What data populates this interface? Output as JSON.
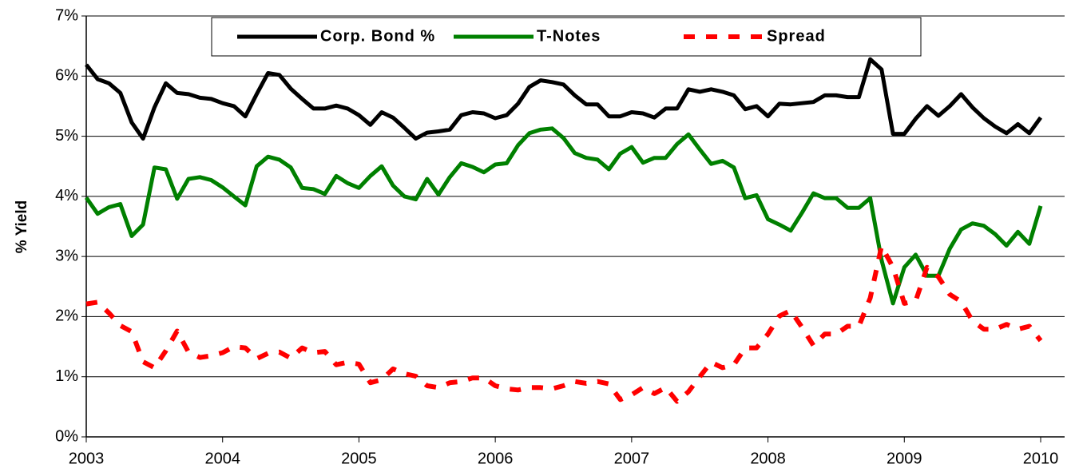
{
  "chart_data": {
    "type": "line",
    "ylabel": "% Yield",
    "categories": [
      "2003",
      null,
      null,
      null,
      null,
      null,
      null,
      null,
      null,
      null,
      null,
      null,
      "2004",
      null,
      null,
      null,
      null,
      null,
      null,
      null,
      null,
      null,
      null,
      null,
      "2005",
      null,
      null,
      null,
      null,
      null,
      null,
      null,
      null,
      null,
      null,
      null,
      "2006",
      null,
      null,
      null,
      null,
      null,
      null,
      null,
      null,
      null,
      null,
      null,
      "2007",
      null,
      null,
      null,
      null,
      null,
      null,
      null,
      null,
      null,
      null,
      null,
      "2008",
      null,
      null,
      null,
      null,
      null,
      null,
      null,
      null,
      null,
      null,
      null,
      "2009",
      null,
      null,
      null,
      null,
      null,
      null,
      null,
      null,
      null,
      null,
      null,
      "2010"
    ],
    "series": [
      {
        "name": "Corp. Bond %",
        "color": "#000000",
        "dash": false,
        "values": [
          6.19,
          5.95,
          5.88,
          5.72,
          5.23,
          4.96,
          5.48,
          5.88,
          5.72,
          5.7,
          5.64,
          5.62,
          5.55,
          5.5,
          5.33,
          5.7,
          6.05,
          6.02,
          5.79,
          5.62,
          5.46,
          5.46,
          5.51,
          5.46,
          5.35,
          5.19,
          5.4,
          5.31,
          5.14,
          4.96,
          5.06,
          5.08,
          5.11,
          5.35,
          5.4,
          5.38,
          5.3,
          5.35,
          5.54,
          5.82,
          5.93,
          5.9,
          5.86,
          5.68,
          5.53,
          5.53,
          5.33,
          5.33,
          5.4,
          5.38,
          5.31,
          5.46,
          5.46,
          5.78,
          5.74,
          5.78,
          5.74,
          5.68,
          5.45,
          5.5,
          5.33,
          5.54,
          5.53,
          5.55,
          5.57,
          5.68,
          5.68,
          5.65,
          5.65,
          6.28,
          6.11,
          5.04,
          5.04,
          5.29,
          5.5,
          5.34,
          5.5,
          5.7,
          5.48,
          5.3,
          5.16,
          5.05,
          5.2,
          5.05,
          5.31
        ]
      },
      {
        "name": "T-Notes",
        "color": "#008000",
        "dash": false,
        "values": [
          3.98,
          3.71,
          3.82,
          3.87,
          3.34,
          3.53,
          4.48,
          4.45,
          3.96,
          4.29,
          4.32,
          4.27,
          4.15,
          4.0,
          3.85,
          4.5,
          4.66,
          4.61,
          4.48,
          4.14,
          4.12,
          4.04,
          4.34,
          4.22,
          4.14,
          4.34,
          4.5,
          4.18,
          4.0,
          3.95,
          4.29,
          4.03,
          4.32,
          4.55,
          4.49,
          4.4,
          4.53,
          4.55,
          4.85,
          5.05,
          5.11,
          5.13,
          4.97,
          4.72,
          4.64,
          4.61,
          4.45,
          4.71,
          4.82,
          4.56,
          4.64,
          4.64,
          4.87,
          5.03,
          4.78,
          4.54,
          4.59,
          4.48,
          3.97,
          4.02,
          3.62,
          3.53,
          3.43,
          3.73,
          4.05,
          3.97,
          3.97,
          3.81,
          3.81,
          3.97,
          2.94,
          2.22,
          2.82,
          3.03,
          2.68,
          2.68,
          3.13,
          3.45,
          3.55,
          3.51,
          3.37,
          3.18,
          3.41,
          3.21,
          3.84
        ]
      },
      {
        "name": "Spread",
        "color": "#ff0000",
        "dash": true,
        "values": [
          2.21,
          2.24,
          2.06,
          1.85,
          1.75,
          1.25,
          1.15,
          1.43,
          1.76,
          1.41,
          1.32,
          1.35,
          1.4,
          1.5,
          1.48,
          1.3,
          1.39,
          1.41,
          1.31,
          1.48,
          1.4,
          1.42,
          1.2,
          1.24,
          1.21,
          0.9,
          0.95,
          1.13,
          1.05,
          1.01,
          0.85,
          0.82,
          0.9,
          0.92,
          0.98,
          0.98,
          0.85,
          0.8,
          0.78,
          0.82,
          0.82,
          0.8,
          0.85,
          0.92,
          0.89,
          0.92,
          0.88,
          0.62,
          0.7,
          0.82,
          0.72,
          0.82,
          0.59,
          0.75,
          1.0,
          1.24,
          1.15,
          1.2,
          1.48,
          1.48,
          1.71,
          2.01,
          2.1,
          1.82,
          1.52,
          1.71,
          1.71,
          1.84,
          1.84,
          2.31,
          3.17,
          2.82,
          2.22,
          2.26,
          2.82,
          2.66,
          2.37,
          2.25,
          1.93,
          1.79,
          1.79,
          1.87,
          1.79,
          1.84,
          1.6
        ]
      }
    ],
    "ylim": [
      0,
      7
    ],
    "yticks": [
      {
        "value": 0,
        "label": "0%"
      },
      {
        "value": 1,
        "label": "1%"
      },
      {
        "value": 2,
        "label": "2%"
      },
      {
        "value": 3,
        "label": "3%"
      },
      {
        "value": 4,
        "label": "4%"
      },
      {
        "value": 5,
        "label": "5%"
      },
      {
        "value": 6,
        "label": "6%"
      },
      {
        "value": 7,
        "label": "7%"
      }
    ],
    "grid": true,
    "legend": "top"
  }
}
